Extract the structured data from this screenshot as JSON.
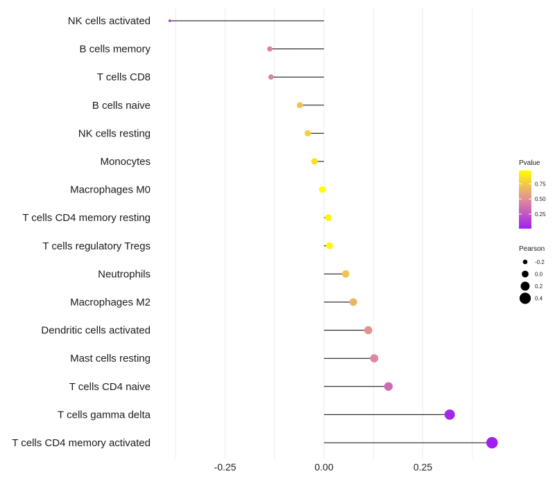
{
  "chart_data": {
    "type": "lollipop",
    "title": "",
    "xlabel": "",
    "ylabel": "",
    "xlim": [
      -0.39,
      0.43
    ],
    "x_ticks": [
      -0.25,
      0.0,
      0.25
    ],
    "x_tick_labels": [
      "-0.25",
      "0.00",
      "0.25"
    ],
    "grid": true,
    "categories": [
      "NK cells activated",
      "B cells memory",
      "T cells CD8",
      "B cells naive",
      "NK cells resting",
      "Monocytes",
      "Macrophages M0",
      "T cells CD4 memory resting",
      "T cells regulatory  Tregs ",
      "Neutrophils",
      "Macrophages M2",
      "Dendritic cells activated",
      "Mast cells resting",
      "T cells CD4 naive",
      "T cells gamma delta",
      "T cells CD4 memory activated"
    ],
    "pearson": [
      -0.39,
      -0.137,
      -0.134,
      -0.061,
      -0.041,
      -0.024,
      -0.004,
      0.011,
      0.014,
      0.055,
      0.074,
      0.112,
      0.127,
      0.163,
      0.318,
      0.425
    ],
    "pvalue": [
      0.05,
      0.45,
      0.45,
      0.72,
      0.78,
      0.85,
      0.97,
      0.93,
      0.93,
      0.72,
      0.66,
      0.52,
      0.47,
      0.34,
      0.04,
      0.01
    ],
    "legend_color": {
      "title": "Pvalue",
      "breaks": [
        0.75,
        0.5,
        0.25
      ],
      "labels": [
        "0.75",
        "0.50",
        "0.25"
      ],
      "low_color": "#a020f0",
      "mid_color": "#e08c9a",
      "high_color": "#ffff00",
      "range": [
        0.01,
        0.97
      ],
      "position": "right"
    },
    "legend_size": {
      "title": "Pearson",
      "breaks": [
        -0.2,
        0.0,
        0.2,
        0.4
      ],
      "labels": [
        "-0.2",
        "0.0",
        "0.2",
        "0.4"
      ],
      "position": "right"
    }
  }
}
